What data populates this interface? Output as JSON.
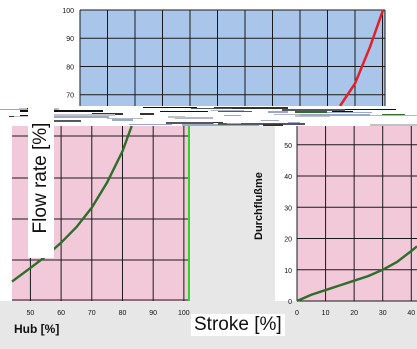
{
  "colors": {
    "top_bg": "#a9c6ea",
    "pink_bg": "#f1c9d9",
    "grid": "#1a1a1a",
    "red_curve": "#e3202a",
    "green_curve": "#2f6e2a",
    "bright_green": "#2fd42f",
    "gray_bg": "#e7e7e7"
  },
  "labels": {
    "flow_rate": "Flow rate [%]",
    "stroke": "Stroke [%]",
    "hub": "Hub [%]",
    "durchfluss": "Durchflußme"
  },
  "chart_data": [
    {
      "type": "line",
      "panel": "top (blue)",
      "y_ticks": [
        70,
        80,
        90,
        100
      ],
      "ylim": [
        66,
        100
      ],
      "grid": true,
      "series": [
        {
          "color": "#e3202a",
          "points": [
            [
              0.0,
              66
            ],
            [
              0.35,
              74
            ],
            [
              0.7,
              87
            ],
            [
              1.0,
              100
            ]
          ]
        }
      ]
    },
    {
      "type": "line",
      "panel": "bottom-left (pink)",
      "x_ticks": [
        50,
        60,
        70,
        80,
        90,
        100
      ],
      "xlim": [
        44,
        102
      ],
      "xlabel": "Hub [%]",
      "grid": true,
      "series": [
        {
          "color": "#2f6e2a",
          "x": [
            44,
            50,
            55,
            60,
            65,
            70,
            75,
            80,
            83
          ],
          "y": [
            5.0,
            8.5,
            11.5,
            15.0,
            19.0,
            24.0,
            30.5,
            38.5,
            45.0
          ]
        }
      ]
    },
    {
      "type": "line",
      "panel": "bottom-right (pink)",
      "x_ticks": [
        0,
        10,
        20,
        30,
        40
      ],
      "y_ticks": [
        0,
        10,
        20,
        30,
        40,
        50
      ],
      "xlim": [
        0,
        42
      ],
      "ylim": [
        0,
        56
      ],
      "ylabel": "Durchflußme",
      "grid": true,
      "series": [
        {
          "color": "#2f6e2a",
          "x": [
            0,
            5,
            10,
            15,
            20,
            25,
            30,
            35,
            40,
            42
          ],
          "y": [
            0,
            2.0,
            3.5,
            5.0,
            6.5,
            8.0,
            10.0,
            12.5,
            16.0,
            17.5
          ]
        }
      ]
    }
  ]
}
